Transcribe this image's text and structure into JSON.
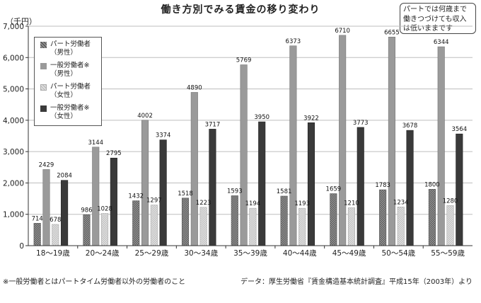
{
  "title": "働き方別でみる賃金の移り変わり",
  "note_lines": [
    "パートでは何歳まで",
    "働きつづけても収入",
    "は低いままです"
  ],
  "unit": "（千円）",
  "footnote": "※一般労働者とはパートタイム労働者以外の労働者のこと",
  "source": "データ：厚生労働省『賃金構造基本統計調査』平成15年（2003年）より",
  "chart_data": {
    "type": "bar",
    "categories": [
      "18～19歳",
      "20～24歳",
      "25～29歳",
      "30～34歳",
      "35～39歳",
      "40～44歳",
      "45～49歳",
      "50～54歳",
      "55～59歳"
    ],
    "ylim": [
      0,
      7000
    ],
    "yticks": [
      0,
      1000,
      2000,
      3000,
      4000,
      5000,
      6000,
      7000
    ],
    "ytick_labels": [
      "0",
      "1,000",
      "2,000",
      "3,000",
      "4,000",
      "5,000",
      "6,000",
      "7,000"
    ],
    "legend_placement": "top-left",
    "series": [
      {
        "name": "パート労働者\n（男性）",
        "values": [
          714,
          986,
          1432,
          1518,
          1593,
          1581,
          1659,
          1783,
          1800
        ],
        "color": "#6e6e6e",
        "pattern": "checker-dark"
      },
      {
        "name": "一般労働者※\n（男性）",
        "values": [
          2429,
          3144,
          4002,
          4890,
          5769,
          6373,
          6710,
          6655,
          6344
        ],
        "color": "#9a9a9a",
        "pattern": "solid"
      },
      {
        "name": "パート労働者\n（女性）",
        "values": [
          678,
          1028,
          1297,
          1223,
          1194,
          1193,
          1210,
          1234,
          1280
        ],
        "color": "#d4d4d4",
        "pattern": "checker-light"
      },
      {
        "name": "一般労働者※\n（女性）",
        "values": [
          2084,
          2795,
          3374,
          3717,
          3950,
          3922,
          3773,
          3678,
          3564
        ],
        "color": "#3a3a3a",
        "pattern": "solid"
      }
    ]
  }
}
